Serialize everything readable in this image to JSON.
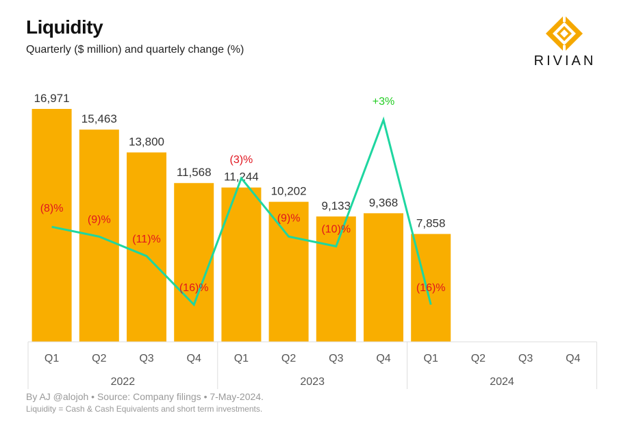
{
  "header": {
    "title": "Liquidity",
    "subtitle": "Quarterly ($ million) and quartely change (%)",
    "logo_text": "RIVIAN"
  },
  "footer": {
    "source": "By AJ @alojoh • Source: Company filings • 7-May-2024.",
    "note": "Liquidity = Cash & Cash Equivalents and short term investments."
  },
  "colors": {
    "bar": "#F9AE00",
    "line": "#1ED6A0",
    "negative_label": "#E0141E",
    "positive_label": "#22CC22",
    "value_label": "#333333"
  },
  "chart_data": {
    "type": "bar",
    "title": "Liquidity",
    "subtitle": "Quarterly ($ million) and quartely change (%)",
    "categories": [
      "Q1",
      "Q2",
      "Q3",
      "Q4",
      "Q1",
      "Q2",
      "Q3",
      "Q4",
      "Q1",
      "Q2",
      "Q3",
      "Q4"
    ],
    "years": [
      {
        "label": "2022",
        "span": 4
      },
      {
        "label": "2023",
        "span": 4
      },
      {
        "label": "2024",
        "span": 4
      }
    ],
    "series": [
      {
        "type": "bar",
        "values": [
          16971,
          15463,
          13800,
          11568,
          11244,
          10202,
          9133,
          9368,
          7858,
          null,
          null,
          null
        ],
        "labels": [
          "16,971",
          "15,463",
          "13,800",
          "11,568",
          "11,244",
          "10,202",
          "9,133",
          "9,368",
          "7,858",
          "",
          "",
          ""
        ]
      },
      {
        "type": "line",
        "values": [
          -8,
          -9,
          -11,
          -16,
          -3,
          -9,
          -10,
          3,
          -16,
          null,
          null,
          null
        ],
        "labels": [
          "(8)%",
          "(9)%",
          "(11)%",
          "(16)%",
          "(3)%",
          "(9)%",
          "(10)%",
          "+3%",
          "(16)%",
          "",
          "",
          ""
        ]
      }
    ],
    "ylim": [
      0,
      17500
    ],
    "line_ylim": [
      -19,
      5
    ]
  }
}
